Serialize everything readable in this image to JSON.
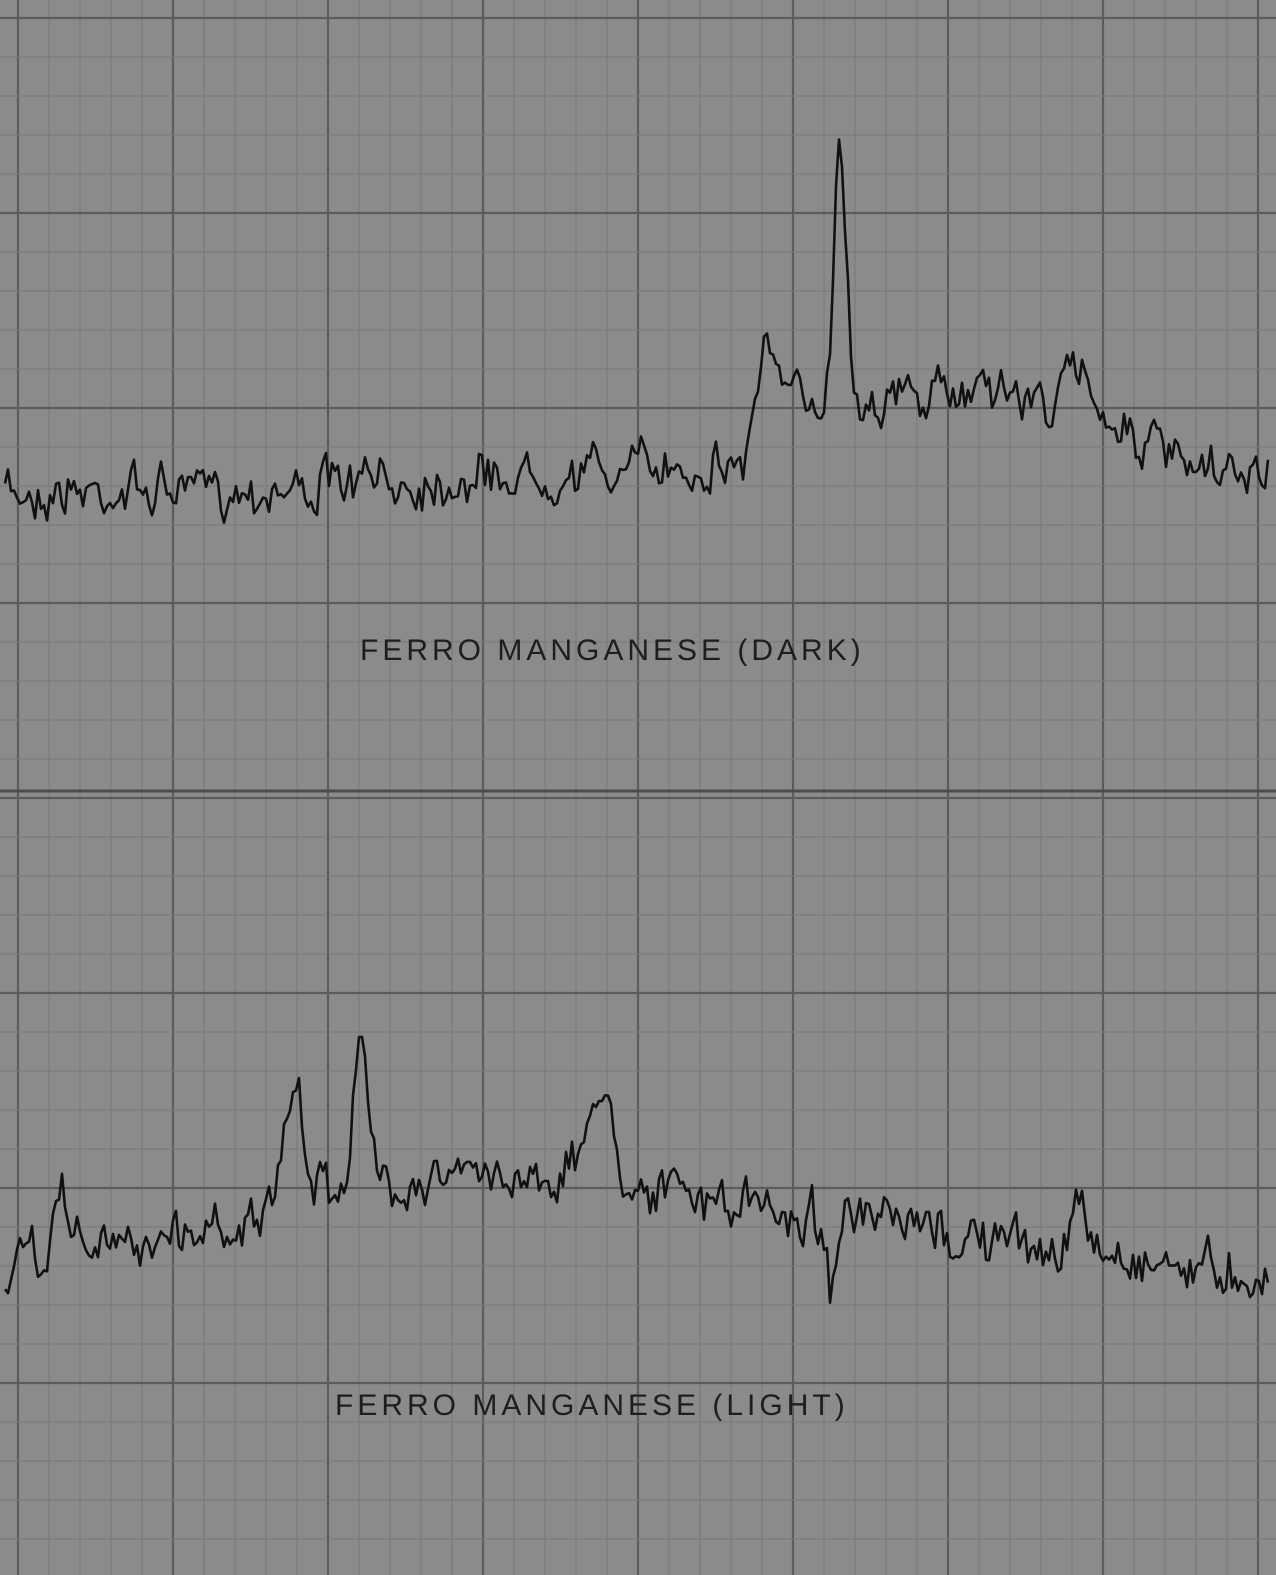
{
  "traces": [
    {
      "label": "FERRO MANGANESE (DARK)"
    },
    {
      "label": "FERRO MANGANESE (LIGHT)"
    }
  ]
}
